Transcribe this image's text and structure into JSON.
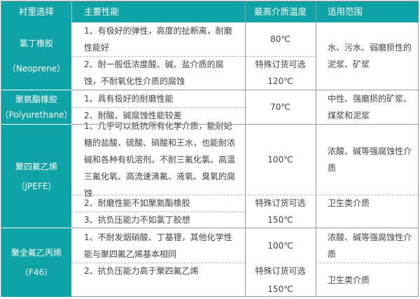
{
  "header": {
    "material": "衬里选择",
    "performance": "主要性能",
    "temperature": "最高介质温度",
    "application": "适用范围"
  },
  "rows": [
    {
      "material": [
        "氯丁橡胶",
        "（Neoprene）"
      ],
      "perf": [
        "1、有极好的弹性，高度的扯断离，耐磨性能好",
        "2、耐一般低浓度酸、碱、盐介质的腐蚀，不耐氧化性介质的腐蚀"
      ],
      "temp": [
        "80℃",
        "特殊订货可选",
        "120℃"
      ],
      "app": [
        "水、污水、弱磨损性的泥浆、矿浆"
      ]
    },
    {
      "material": [
        "聚氨酯橡胶",
        "（Polyurethane）"
      ],
      "perf": [
        "1、具有极好的耐磨性能",
        "2、耐酸、碱腐蚀性能较差"
      ],
      "temp": [
        "70℃"
      ],
      "app": [
        "中性、强磨损的矿浆、煤浆和泥浆"
      ]
    },
    {
      "material": [
        "聚四氟乙烯",
        "（JPEFE）"
      ],
      "perf": [
        "1、几乎可以抵抗所有化学介质，能耐妃糖的盐酸、硫酸、硝酸和王水，也能耐浓碱和各种有机溶剂。不耐三氟化氯、高温三氟化氧、高流速沸氟、液氧、臭氧的腐蚀",
        "2、耐磨性能不如聚氨酯橡胶",
        "3、抗负压能力不如氯丁胶想"
      ],
      "temp": [
        "100℃",
        "特殊订货可选",
        "150℃"
      ],
      "app": [
        "浓酸、碱等强腐蚀性介质",
        "卫生类介质"
      ]
    },
    {
      "material": [
        "聚全氟乙丙烯",
        "（F46）"
      ],
      "perf": [
        "1、不耐发烟硝酸、丁基锂，其他化学性能与聚四氟乙烯基本相同",
        "2、抗负压能力高于聚四氟乙烯"
      ],
      "temp": [
        "100℃",
        "特殊订货可选",
        "150℃"
      ],
      "app": [
        "浓酸、碱等强腐蚀性介质",
        "卫生类介质"
      ]
    }
  ]
}
